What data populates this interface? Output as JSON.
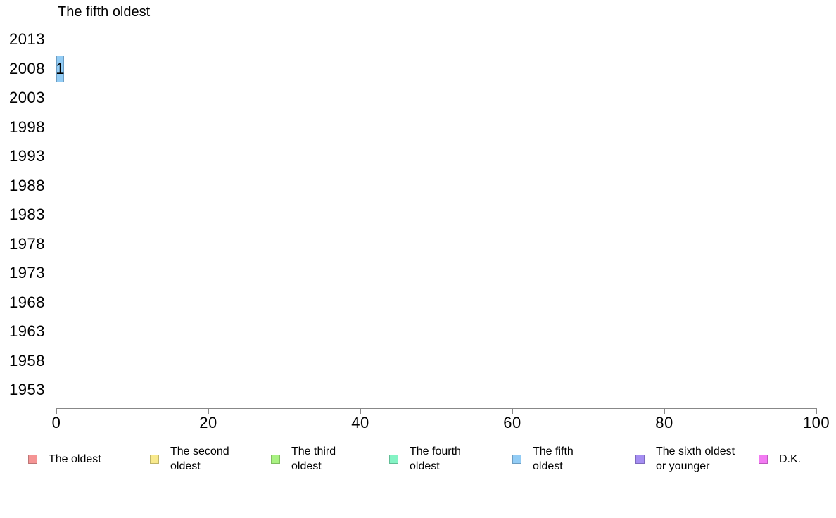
{
  "background": "#ffffff",
  "text_color": "#000000",
  "axis_color": "#888888",
  "chart_data": {
    "type": "bar",
    "orientation": "horizontal",
    "title": "The fifth oldest",
    "categories": [
      "2013",
      "2008",
      "2003",
      "1998",
      "1993",
      "1988",
      "1983",
      "1978",
      "1973",
      "1968",
      "1963",
      "1958",
      "1953"
    ],
    "series": [
      {
        "name": "The fifth oldest",
        "color": "#92ccf5",
        "border_color": "#6d9dc2",
        "values": [
          0,
          1,
          0,
          0,
          0,
          0,
          0,
          0,
          0,
          0,
          0,
          0,
          0
        ]
      }
    ],
    "bar_labels": [
      "",
      "1",
      "",
      "",
      "",
      "",
      "",
      "",
      "",
      "",
      "",
      "",
      ""
    ],
    "xlabel": "",
    "ylabel": "",
    "xlim": [
      0,
      100
    ],
    "x_ticks": [
      0,
      20,
      40,
      60,
      80,
      100
    ],
    "grid": false,
    "legend_position": "bottom",
    "legend": [
      {
        "label": "The oldest",
        "lines": [
          "The oldest"
        ],
        "color": "#f59494",
        "border_color": "#bd7676"
      },
      {
        "label": "The second oldest",
        "lines": [
          "The second",
          "oldest"
        ],
        "color": "#f8e98c",
        "border_color": "#bfb469"
      },
      {
        "label": "The third oldest",
        "lines": [
          "The third",
          "oldest"
        ],
        "color": "#a9f282",
        "border_color": "#81bd61"
      },
      {
        "label": "The fourth oldest",
        "lines": [
          "The fourth",
          "oldest"
        ],
        "color": "#84f3c4",
        "border_color": "#62bd96"
      },
      {
        "label": "The fifth oldest",
        "lines": [
          "The fifth",
          "oldest"
        ],
        "color": "#92ccf5",
        "border_color": "#6d9dc2"
      },
      {
        "label": "The sixth oldest or younger",
        "lines": [
          "The sixth oldest",
          "or younger"
        ],
        "color": "#a58ef2",
        "border_color": "#7d6abd"
      },
      {
        "label": "D.K.",
        "lines": [
          "D.K."
        ],
        "color": "#f27af2",
        "border_color": "#bd59bd"
      }
    ]
  }
}
